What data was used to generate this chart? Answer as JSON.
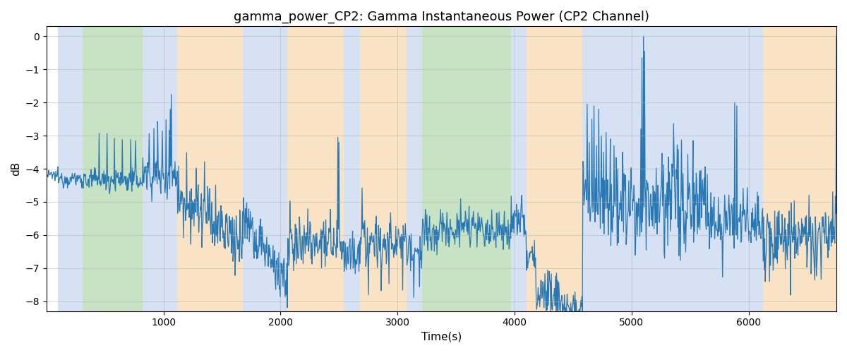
{
  "title": "gamma_power_CP2: Gamma Instantaneous Power (CP2 Channel)",
  "xlabel": "Time(s)",
  "ylabel": "dB",
  "ylim": [
    -8.3,
    0.3
  ],
  "xlim": [
    0,
    6750
  ],
  "yticks": [
    0,
    -1,
    -2,
    -3,
    -4,
    -5,
    -6,
    -7,
    -8
  ],
  "xticks": [
    1000,
    2000,
    3000,
    4000,
    5000,
    6000
  ],
  "line_color": "#2878b5",
  "line_width": 0.9,
  "bg_regions": [
    {
      "xmin": 100,
      "xmax": 310,
      "color": "#aec6e8",
      "alpha": 0.5
    },
    {
      "xmin": 310,
      "xmax": 820,
      "color": "#90c98a",
      "alpha": 0.5
    },
    {
      "xmin": 820,
      "xmax": 1120,
      "color": "#aec6e8",
      "alpha": 0.5
    },
    {
      "xmin": 1120,
      "xmax": 1680,
      "color": "#f5c98a",
      "alpha": 0.5
    },
    {
      "xmin": 1680,
      "xmax": 2060,
      "color": "#aec6e8",
      "alpha": 0.5
    },
    {
      "xmin": 2060,
      "xmax": 2540,
      "color": "#f5c98a",
      "alpha": 0.5
    },
    {
      "xmin": 2540,
      "xmax": 2680,
      "color": "#aec6e8",
      "alpha": 0.5
    },
    {
      "xmin": 2680,
      "xmax": 3080,
      "color": "#f5c98a",
      "alpha": 0.5
    },
    {
      "xmin": 3080,
      "xmax": 3210,
      "color": "#aec6e8",
      "alpha": 0.5
    },
    {
      "xmin": 3210,
      "xmax": 3970,
      "color": "#90c98a",
      "alpha": 0.5
    },
    {
      "xmin": 3970,
      "xmax": 4100,
      "color": "#aec6e8",
      "alpha": 0.5
    },
    {
      "xmin": 4100,
      "xmax": 4580,
      "color": "#f5c98a",
      "alpha": 0.5
    },
    {
      "xmin": 4580,
      "xmax": 5660,
      "color": "#aec6e8",
      "alpha": 0.5
    },
    {
      "xmin": 5660,
      "xmax": 6120,
      "color": "#aec6e8",
      "alpha": 0.5
    },
    {
      "xmin": 6120,
      "xmax": 6750,
      "color": "#f5c98a",
      "alpha": 0.5
    }
  ],
  "figsize": [
    12,
    5
  ],
  "dpi": 100,
  "title_fontsize": 13,
  "axis_fontsize": 11,
  "grid_color": "#b0b0b0",
  "grid_alpha": 0.7,
  "seed": 12345,
  "n_points": 1500
}
